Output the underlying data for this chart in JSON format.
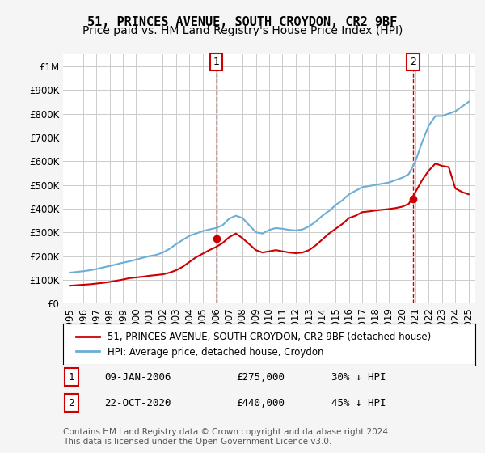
{
  "title": "51, PRINCES AVENUE, SOUTH CROYDON, CR2 9BF",
  "subtitle": "Price paid vs. HM Land Registry's House Price Index (HPI)",
  "xlabel": "",
  "ylabel": "",
  "ylim": [
    0,
    1050000
  ],
  "yticks": [
    0,
    100000,
    200000,
    300000,
    400000,
    500000,
    600000,
    700000,
    800000,
    900000,
    1000000
  ],
  "ytick_labels": [
    "£0",
    "£100K",
    "£200K",
    "£300K",
    "£400K",
    "£500K",
    "£600K",
    "£700K",
    "£800K",
    "£900K",
    "£1M"
  ],
  "hpi_color": "#6baed6",
  "price_color": "#cc0000",
  "dashed_line_color": "#cc0000",
  "background_color": "#f5f5f5",
  "plot_bg_color": "#ffffff",
  "grid_color": "#cccccc",
  "marker1_year": 2006.03,
  "marker1_price": 275000,
  "marker1_label": "1",
  "marker2_year": 2020.81,
  "marker2_price": 440000,
  "marker2_label": "2",
  "legend_line1": "51, PRINCES AVENUE, SOUTH CROYDON, CR2 9BF (detached house)",
  "legend_line2": "HPI: Average price, detached house, Croydon",
  "annotation1": "09-JAN-2006        £275,000        30% ↓ HPI",
  "annotation2": "22-OCT-2020        £440,000        45% ↓ HPI",
  "footer": "Contains HM Land Registry data © Crown copyright and database right 2024.\nThis data is licensed under the Open Government Licence v3.0.",
  "title_fontsize": 11,
  "subtitle_fontsize": 10,
  "tick_fontsize": 8.5,
  "hpi_data_x": [
    1995,
    1995.5,
    1996,
    1996.5,
    1997,
    1997.5,
    1998,
    1998.5,
    1999,
    1999.5,
    2000,
    2000.5,
    2001,
    2001.5,
    2002,
    2002.5,
    2003,
    2003.5,
    2004,
    2004.5,
    2005,
    2005.5,
    2006,
    2006.5,
    2007,
    2007.5,
    2008,
    2008.5,
    2009,
    2009.5,
    2010,
    2010.5,
    2011,
    2011.5,
    2012,
    2012.5,
    2013,
    2013.5,
    2014,
    2014.5,
    2015,
    2015.5,
    2016,
    2016.5,
    2017,
    2017.5,
    2018,
    2018.5,
    2019,
    2019.5,
    2020,
    2020.5,
    2021,
    2021.5,
    2022,
    2022.5,
    2023,
    2023.5,
    2024,
    2024.5,
    2025
  ],
  "hpi_data_y": [
    130000,
    133000,
    136000,
    140000,
    145000,
    152000,
    158000,
    165000,
    172000,
    178000,
    185000,
    193000,
    200000,
    205000,
    215000,
    230000,
    250000,
    268000,
    285000,
    295000,
    305000,
    312000,
    318000,
    330000,
    358000,
    370000,
    360000,
    330000,
    300000,
    295000,
    310000,
    318000,
    315000,
    310000,
    308000,
    312000,
    325000,
    345000,
    370000,
    390000,
    415000,
    435000,
    460000,
    475000,
    490000,
    495000,
    500000,
    505000,
    510000,
    520000,
    530000,
    545000,
    600000,
    680000,
    750000,
    790000,
    790000,
    800000,
    810000,
    830000,
    850000
  ],
  "price_data_x": [
    1995,
    1995.5,
    1996,
    1996.5,
    1997,
    1997.5,
    1998,
    1998.5,
    1999,
    1999.5,
    2000,
    2000.5,
    2001,
    2001.5,
    2002,
    2002.5,
    2003,
    2003.5,
    2004,
    2004.5,
    2005,
    2005.5,
    2006,
    2006.5,
    2007,
    2007.5,
    2008,
    2008.5,
    2009,
    2009.5,
    2010,
    2010.5,
    2011,
    2011.5,
    2012,
    2012.5,
    2013,
    2013.5,
    2014,
    2014.5,
    2015,
    2015.5,
    2016,
    2016.5,
    2017,
    2017.5,
    2018,
    2018.5,
    2019,
    2019.5,
    2020,
    2020.5,
    2021,
    2021.5,
    2022,
    2022.5,
    2023,
    2023.5,
    2024,
    2024.5,
    2025
  ],
  "price_data_y": [
    75000,
    77000,
    79000,
    81000,
    84000,
    87000,
    91000,
    96000,
    101000,
    107000,
    110000,
    113000,
    117000,
    120000,
    123000,
    130000,
    140000,
    155000,
    175000,
    195000,
    210000,
    225000,
    238000,
    255000,
    280000,
    295000,
    275000,
    250000,
    225000,
    215000,
    220000,
    225000,
    220000,
    215000,
    212000,
    215000,
    225000,
    245000,
    270000,
    295000,
    315000,
    335000,
    360000,
    370000,
    385000,
    388000,
    392000,
    395000,
    398000,
    402000,
    408000,
    420000,
    470000,
    520000,
    560000,
    590000,
    580000,
    575000,
    485000,
    470000,
    460000
  ]
}
